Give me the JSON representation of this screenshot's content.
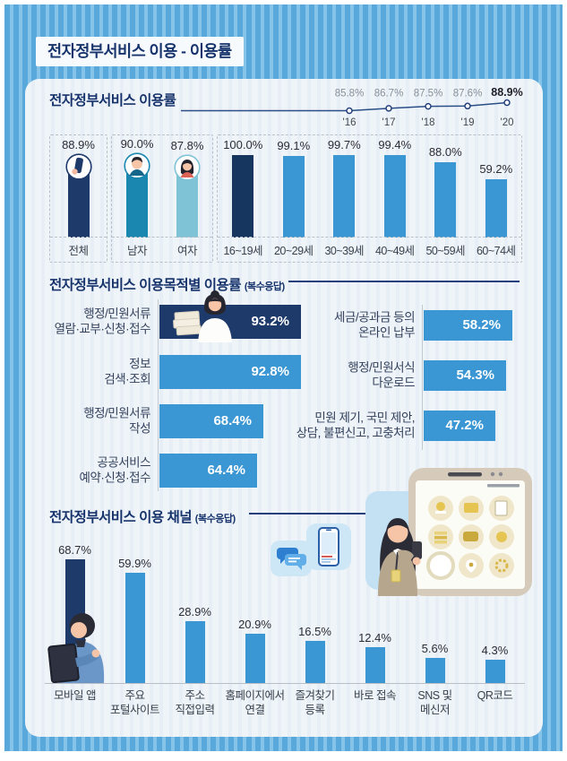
{
  "title": "전자정부서비스 이용 - 이용률",
  "colors": {
    "navy": "#1d3a6b",
    "blue": "#3b97d3",
    "male_blue": "#1a87b0",
    "female_teal": "#7fc3d6",
    "age_dark": "#17365f",
    "frame_blue": "#58a8db",
    "heading_navy": "#16336b"
  },
  "chart_data": [
    {
      "id": "usage-rate-trend",
      "type": "line",
      "title": "전자정부서비스 이용률",
      "x": [
        "'16",
        "'17",
        "'18",
        "'19",
        "'20"
      ],
      "values": [
        85.8,
        86.7,
        87.5,
        87.6,
        88.9
      ],
      "unit": "%",
      "highlight_last": true,
      "grid": false,
      "legend_position": "none"
    },
    {
      "id": "usage-rate-by-group",
      "type": "bar",
      "unit": "%",
      "groups": [
        {
          "categories": [
            "전체"
          ],
          "values": [
            88.9
          ],
          "bar_colors": [
            "#1d3a6b"
          ],
          "icons": [
            "person-icon"
          ]
        },
        {
          "categories": [
            "남자",
            "여자"
          ],
          "values": [
            90.0,
            87.8
          ],
          "bar_colors": [
            "#1a87b0",
            "#7fc3d6"
          ],
          "icons": [
            "man-icon",
            "woman-icon"
          ]
        },
        {
          "categories": [
            "16~19세",
            "20~29세",
            "30~39세",
            "40~49세",
            "50~59세",
            "60~74세"
          ],
          "values": [
            100.0,
            99.1,
            99.7,
            99.4,
            88.0,
            59.2
          ],
          "bar_colors": [
            "#17365f",
            "#3b97d3",
            "#3b97d3",
            "#3b97d3",
            "#3b97d3",
            "#3b97d3"
          ],
          "icons": []
        }
      ]
    },
    {
      "id": "usage-by-purpose",
      "type": "bar-horizontal",
      "title": "전자정부서비스 이용목적별 이용률",
      "subtitle": "(복수응답)",
      "unit": "%",
      "columns": [
        {
          "items": [
            {
              "label": "행정/민원서류\n열람·교부·신청·접수",
              "value": 93.2,
              "color": "#1d3a6b"
            },
            {
              "label": "정보\n검색·조회",
              "value": 92.8,
              "color": "#3b97d3"
            },
            {
              "label": "행정/민원서류\n작성",
              "value": 68.4,
              "color": "#3b97d3"
            },
            {
              "label": "공공서비스\n예약·신청·접수",
              "value": 64.4,
              "color": "#3b97d3"
            }
          ]
        },
        {
          "items": [
            {
              "label": "세금/공과금 등의\n온라인 납부",
              "value": 58.2,
              "color": "#3b97d3"
            },
            {
              "label": "행정/민원서식\n다운로드",
              "value": 54.3,
              "color": "#3b97d3"
            },
            {
              "label": "민원 제기, 국민 제안,\n상담, 불편신고, 고충처리",
              "value": 47.2,
              "color": "#3b97d3"
            }
          ]
        }
      ]
    },
    {
      "id": "usage-channel",
      "type": "bar",
      "title": "전자정부서비스 이용 채널",
      "subtitle": "(복수응답)",
      "unit": "%",
      "categories": [
        "모바일 앱",
        "주요\n포털사이트",
        "주소\n직접입력",
        "홈페이지에서\n연결",
        "즐겨찾기\n등록",
        "바로 접속",
        "SNS 및\n메신저",
        "QR코드"
      ],
      "values": [
        68.7,
        59.9,
        28.9,
        20.9,
        16.5,
        12.4,
        5.6,
        4.3
      ],
      "bar_colors": [
        "#1d3a6b",
        "#3b97d3",
        "#3b97d3",
        "#3b97d3",
        "#3b97d3",
        "#3b97d3",
        "#3b97d3",
        "#3b97d3"
      ]
    }
  ],
  "illustration_names": [
    "woman-with-documents",
    "chat-bubbles",
    "smartphone",
    "woman-with-phone-app-grid",
    "person-using-tablet"
  ]
}
